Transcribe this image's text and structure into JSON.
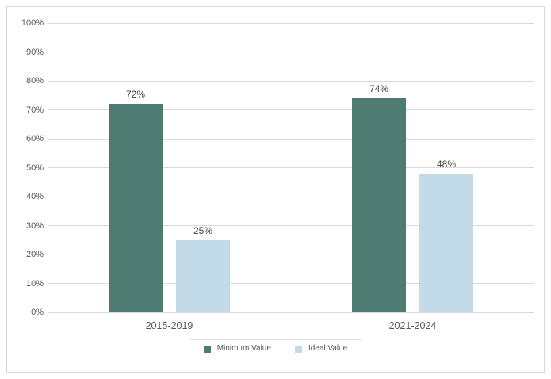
{
  "chart_data": {
    "type": "bar",
    "categories": [
      "2015-2019",
      "2021-2024"
    ],
    "series": [
      {
        "name": "Minimum Value",
        "color": "#4E7C72",
        "values": [
          72,
          74
        ],
        "data_labels": [
          "72%",
          "74%"
        ]
      },
      {
        "name": "Ideal Value",
        "color": "#C3DAE8",
        "values": [
          25,
          48
        ],
        "data_labels": [
          "25%",
          "48%"
        ]
      }
    ],
    "title": "",
    "xlabel": "",
    "ylabel": "",
    "ylim": [
      0,
      100
    ],
    "ytick_step": 10,
    "ytick_labels": [
      "0%",
      "10%",
      "20%",
      "30%",
      "40%",
      "50%",
      "60%",
      "70%",
      "80%",
      "90%",
      "100%"
    ],
    "grid": true,
    "legend_position": "bottom",
    "legend_items": [
      {
        "label": "Minimum Value",
        "color": "#4E7C72"
      },
      {
        "label": "Ideal Value",
        "color": "#C3DAE8"
      }
    ],
    "colors": {
      "grid": "#D9D9D9",
      "axis_text": "#595959",
      "data_label_text": "#404040",
      "frame_border": "#D9D9D9",
      "background": "#FFFFFF"
    }
  }
}
